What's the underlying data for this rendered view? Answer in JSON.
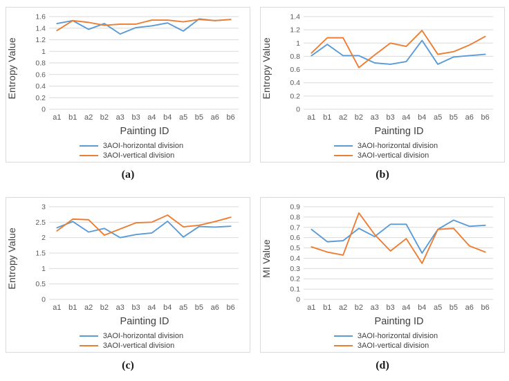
{
  "colors": {
    "series_horizontal": "#5B9BD5",
    "series_vertical": "#ED7D31",
    "gridline": "#D9D9D9",
    "tick_text": "#595959",
    "axis_title_text": "#404040",
    "panel_border": "#D9D9D9"
  },
  "chart_data": [
    {
      "id": "a",
      "caption": "(a)",
      "type": "line",
      "title": "",
      "xlabel": "Painting ID",
      "ylabel": "Entropy Value",
      "ylim": [
        0,
        1.6
      ],
      "yticks": [
        0,
        0.2,
        0.4,
        0.6,
        0.8,
        1,
        1.2,
        1.4,
        1.6
      ],
      "grid": true,
      "legend_position": "bottom",
      "categories": [
        "a1",
        "b1",
        "a2",
        "b2",
        "a3",
        "b3",
        "a4",
        "b4",
        "a5",
        "b5",
        "a6",
        "b6"
      ],
      "series": [
        {
          "name": "3AOI-horizontal division",
          "color": "#5B9BD5",
          "values": [
            1.48,
            1.53,
            1.38,
            1.48,
            1.3,
            1.41,
            1.44,
            1.49,
            1.35,
            1.56,
            1.53,
            1.55
          ]
        },
        {
          "name": "3AOI-vertical division",
          "color": "#ED7D31",
          "values": [
            1.36,
            1.53,
            1.5,
            1.45,
            1.47,
            1.47,
            1.54,
            1.54,
            1.51,
            1.55,
            1.53,
            1.55
          ]
        }
      ]
    },
    {
      "id": "b",
      "caption": "(b)",
      "type": "line",
      "title": "",
      "xlabel": "Painting ID",
      "ylabel": "Entropy Value",
      "ylim": [
        0,
        1.4
      ],
      "yticks": [
        0,
        0.2,
        0.4,
        0.6,
        0.8,
        1,
        1.2,
        1.4
      ],
      "grid": true,
      "legend_position": "bottom",
      "categories": [
        "a1",
        "b1",
        "a2",
        "b2",
        "a3",
        "b3",
        "a4",
        "b4",
        "a5",
        "b5",
        "a6",
        "b6"
      ],
      "series": [
        {
          "name": "3AOI-horizontal division",
          "color": "#5B9BD5",
          "values": [
            0.81,
            0.98,
            0.81,
            0.81,
            0.7,
            0.68,
            0.72,
            1.04,
            0.68,
            0.79,
            0.81,
            0.83
          ]
        },
        {
          "name": "3AOI-vertical division",
          "color": "#ED7D31",
          "values": [
            0.85,
            1.08,
            1.08,
            0.63,
            0.82,
            1.0,
            0.95,
            1.19,
            0.83,
            0.87,
            0.97,
            1.1
          ]
        }
      ]
    },
    {
      "id": "c",
      "caption": "(c)",
      "type": "line",
      "title": "",
      "xlabel": "Painting ID",
      "ylabel": "Entropy Value",
      "ylim": [
        0,
        3
      ],
      "yticks": [
        0,
        0.5,
        1,
        1.5,
        2,
        2.5,
        3
      ],
      "grid": true,
      "legend_position": "bottom",
      "categories": [
        "a1",
        "b1",
        "a2",
        "b2",
        "a3",
        "b3",
        "a4",
        "b4",
        "a5",
        "b5",
        "a6",
        "b6"
      ],
      "series": [
        {
          "name": "3AOI-horizontal division",
          "color": "#5B9BD5",
          "values": [
            2.32,
            2.52,
            2.18,
            2.3,
            2.0,
            2.1,
            2.15,
            2.53,
            2.02,
            2.36,
            2.34,
            2.37
          ]
        },
        {
          "name": "3AOI-vertical division",
          "color": "#ED7D31",
          "values": [
            2.22,
            2.6,
            2.58,
            2.08,
            2.28,
            2.48,
            2.5,
            2.73,
            2.35,
            2.4,
            2.52,
            2.66
          ]
        }
      ]
    },
    {
      "id": "d",
      "caption": "(d)",
      "type": "line",
      "title": "",
      "xlabel": "Painting ID",
      "ylabel": "MI Value",
      "ylim": [
        0,
        0.9
      ],
      "yticks": [
        0,
        0.1,
        0.2,
        0.3,
        0.4,
        0.5,
        0.6,
        0.7,
        0.8,
        0.9
      ],
      "grid": true,
      "legend_position": "bottom",
      "categories": [
        "a1",
        "b1",
        "a2",
        "b2",
        "a3",
        "b3",
        "a4",
        "b4",
        "a5",
        "b5",
        "a6",
        "b6"
      ],
      "series": [
        {
          "name": "3AOI-horizontal division",
          "color": "#5B9BD5",
          "values": [
            0.68,
            0.56,
            0.57,
            0.69,
            0.61,
            0.73,
            0.73,
            0.45,
            0.68,
            0.77,
            0.71,
            0.72
          ]
        },
        {
          "name": "3AOI-vertical division",
          "color": "#ED7D31",
          "values": [
            0.51,
            0.46,
            0.43,
            0.84,
            0.63,
            0.47,
            0.59,
            0.35,
            0.68,
            0.69,
            0.52,
            0.46
          ]
        }
      ]
    }
  ]
}
